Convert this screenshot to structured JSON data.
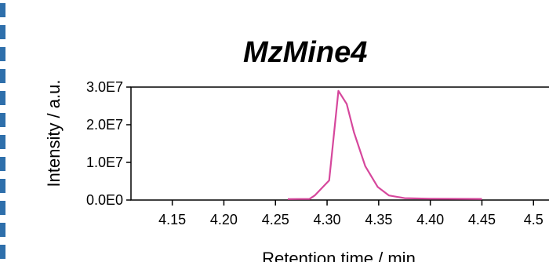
{
  "chart_data": {
    "type": "line",
    "title": "MzMine4",
    "xlabel": "Retention time / min",
    "ylabel": "Intensity / a.u.",
    "xlim": [
      4.11,
      4.515
    ],
    "ylim": [
      0,
      30000000
    ],
    "x_ticks": [
      "4.15",
      "4.20",
      "4.25",
      "4.30",
      "4.35",
      "4.40",
      "4.45",
      "4.5"
    ],
    "y_ticks": [
      "3.0E7",
      "2.0E7",
      "1.0E7",
      "0.0E0"
    ],
    "grid": false,
    "legend": "none",
    "colors": {
      "line": "#d6479c",
      "axis": "#000000",
      "border_dash": "#2e6fab"
    },
    "series": [
      {
        "x": [
          4.262,
          4.283,
          4.288,
          4.302,
          4.311,
          4.319,
          4.326,
          4.337,
          4.349,
          4.36,
          4.375,
          4.4,
          4.45
        ],
        "y": [
          250000,
          300000,
          1200000,
          5200000,
          29000000,
          25500000,
          18000000,
          9000000,
          3500000,
          1200000,
          500000,
          350000,
          300000
        ]
      }
    ]
  }
}
